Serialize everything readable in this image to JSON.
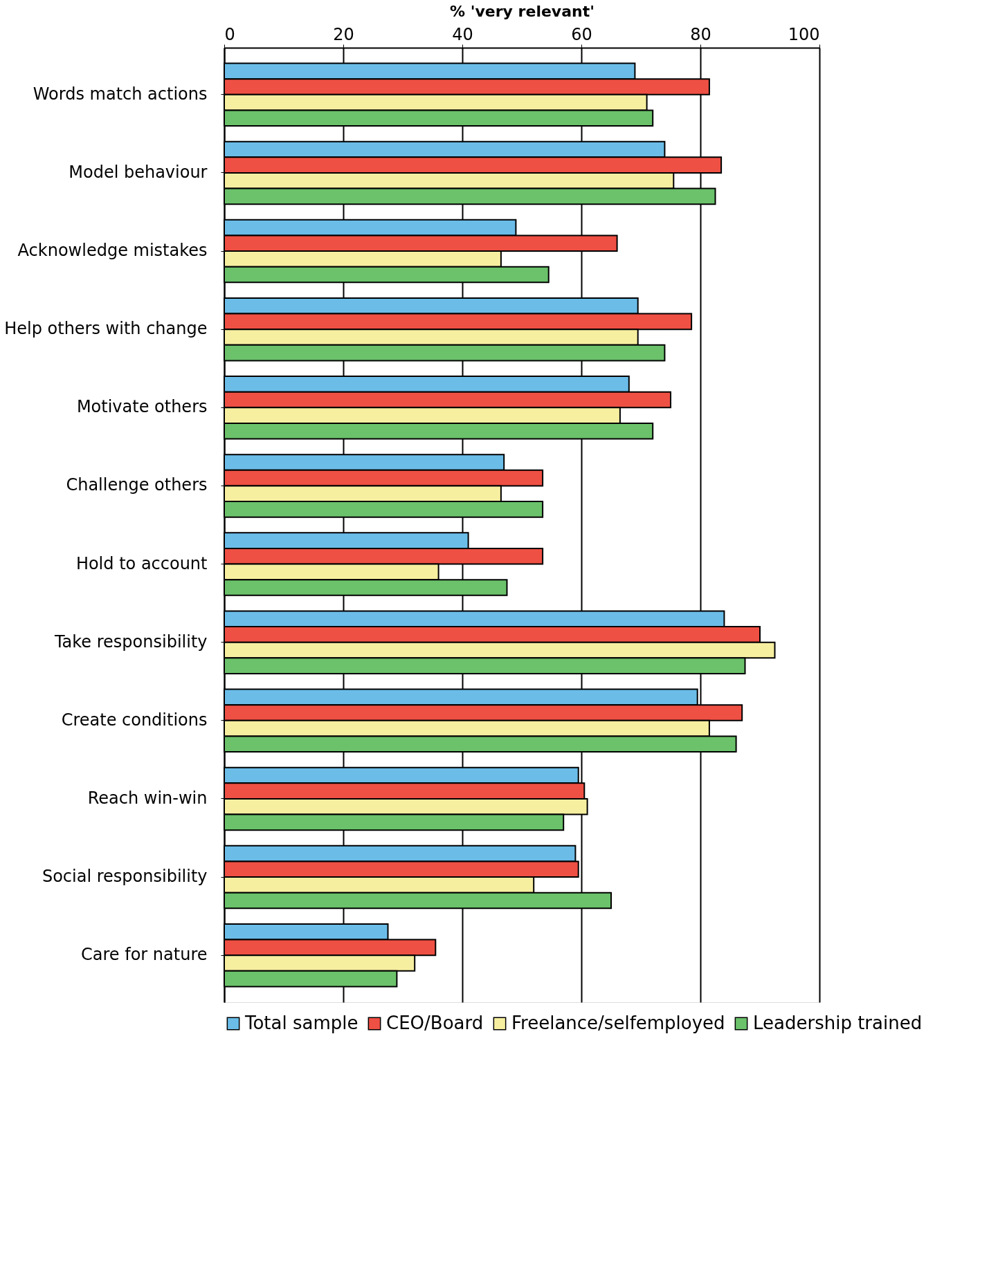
{
  "chart_data": {
    "type": "bar",
    "orientation": "horizontal",
    "xlabel": "% 'very relevant'",
    "categories": [
      "Words match actions",
      "Model behaviour",
      "Acknowledge mistakes",
      "Help others with change",
      "Motivate others",
      "Challenge others",
      "Hold to account",
      "Take responsibility",
      "Create conditions",
      "Reach win-win",
      "Social responsibility",
      "Care for nature"
    ],
    "series": [
      {
        "name": "Total sample",
        "color": "#6bbde8",
        "values": [
          69,
          74,
          49,
          69.5,
          68,
          47,
          41,
          84,
          79.5,
          59.5,
          59,
          27.5
        ]
      },
      {
        "name": "CEO/Board",
        "color": "#ef5044",
        "values": [
          81.5,
          83.5,
          66,
          78.5,
          75,
          53.5,
          53.5,
          90,
          87,
          60.5,
          59.5,
          35.5
        ]
      },
      {
        "name": "Freelance/selfemployed",
        "color": "#f7efa0",
        "values": [
          71,
          75.5,
          46.5,
          69.5,
          66.5,
          46.5,
          36,
          92.5,
          81.5,
          61,
          52,
          32
        ]
      },
      {
        "name": "Leadership trained",
        "color": "#6bc26b",
        "values": [
          72,
          82.5,
          54.5,
          74,
          72,
          53.5,
          47.5,
          87.5,
          86,
          57,
          65,
          29
        ]
      }
    ],
    "xlim": [
      0,
      100
    ],
    "xticks": [
      0,
      20,
      40,
      60,
      80,
      100
    ],
    "grid": "x",
    "legend": "bottom"
  }
}
